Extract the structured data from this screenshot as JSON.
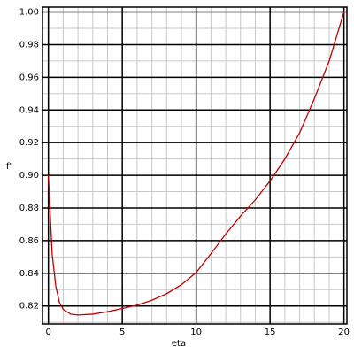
{
  "chart_data": {
    "type": "line",
    "x_label": "eta",
    "y_label": "f'",
    "x": [
      0,
      0.25,
      0.5,
      0.75,
      1,
      1.5,
      2,
      3,
      4,
      5,
      6,
      7,
      8,
      9,
      10,
      11,
      12,
      13,
      14,
      15,
      16,
      17,
      18,
      19,
      20
    ],
    "series": [
      {
        "color": "#c00000",
        "values": [
          0.9,
          0.852,
          0.832,
          0.822,
          0.818,
          0.815,
          0.8145,
          0.815,
          0.8165,
          0.8185,
          0.8205,
          0.8235,
          0.8275,
          0.833,
          0.8405,
          0.852,
          0.864,
          0.875,
          0.885,
          0.8965,
          0.91,
          0.926,
          0.947,
          0.97,
          1.0
        ]
      }
    ],
    "xlim": [
      -0.4,
      20.2
    ],
    "ylim": [
      0.809,
      1.003
    ],
    "xticks": [
      0,
      5,
      10,
      15,
      20
    ],
    "yticks": [
      0.82,
      0.84,
      0.86,
      0.88,
      {
        "value": 0.9,
        "label": "0.90"
      },
      0.92,
      0.94,
      0.96,
      0.98,
      {
        "value": 1.0,
        "label": "1.00"
      }
    ],
    "grid": true,
    "minor_grid_step": {
      "x": 1,
      "y": 0.01
    }
  }
}
